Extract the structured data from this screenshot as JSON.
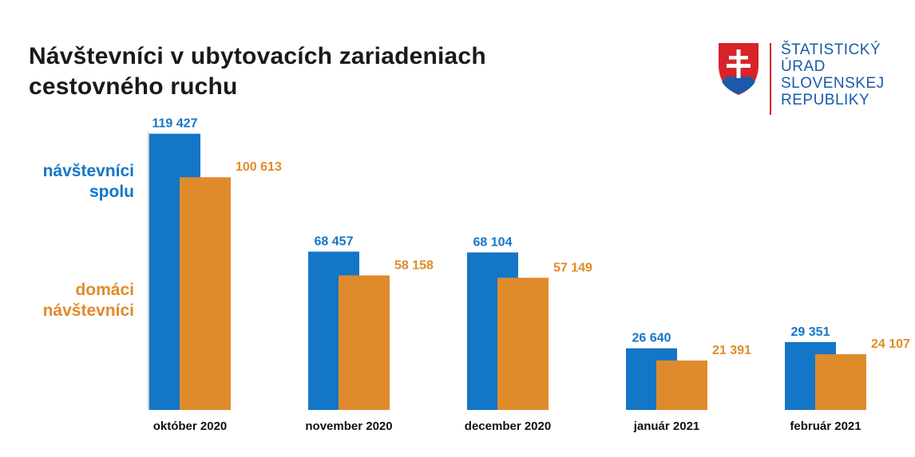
{
  "title": {
    "line1": "Návštevníci v ubytovacích zariadeniach",
    "line2": "cestovného ruchu"
  },
  "legend": {
    "total_line1": "návštevníci",
    "total_line2": "spolu",
    "domestic_line1": "domáci",
    "domestic_line2": "návštevníci"
  },
  "logo": {
    "line1": "ŠTATISTICKÝ",
    "line2": "ÚRAD",
    "line3": "SLOVENSKEJ",
    "line4": "REPUBLIKY"
  },
  "colors": {
    "total": "#1476c6",
    "domestic": "#e08b2b",
    "axis": "#9a9a9a"
  },
  "chart_data": {
    "type": "bar",
    "title": "Návštevníci v ubytovacích zariadeniach cestovného ruchu",
    "categories": [
      "október 2020",
      "november 2020",
      "december 2020",
      "január 2021",
      "február 2021"
    ],
    "series": [
      {
        "name": "návštevníci spolu",
        "values": [
          119427,
          68457,
          68104,
          26640,
          29351
        ],
        "labels": [
          "119 427",
          "68 457",
          "68 104",
          "26 640",
          "29 351"
        ]
      },
      {
        "name": "domáci návštevníci",
        "values": [
          100613,
          58158,
          57149,
          21391,
          24107
        ],
        "labels": [
          "100 613",
          "58 158",
          "57 149",
          "21 391",
          "24 107"
        ]
      }
    ],
    "ylim": [
      0,
      120000
    ],
    "grid": false,
    "legend": "left"
  }
}
